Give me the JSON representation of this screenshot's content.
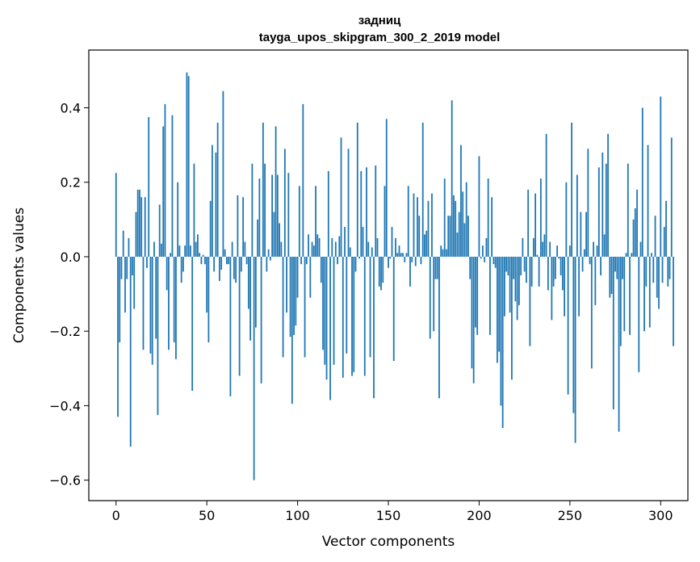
{
  "chart_data": {
    "type": "bar",
    "title_line1": "задниц",
    "title_line2": "tayga_upos_skipgram_300_2_2019 model",
    "xlabel": "Vector components",
    "ylabel": "Components values",
    "xlim": [
      -15,
      315
    ],
    "ylim": [
      -0.655,
      0.555
    ],
    "x_ticks": [
      0,
      50,
      100,
      150,
      200,
      250,
      300
    ],
    "x_tick_labels": [
      "0",
      "50",
      "100",
      "150",
      "200",
      "250",
      "300"
    ],
    "y_ticks": [
      -0.6,
      -0.4,
      -0.2,
      0.0,
      0.2,
      0.4
    ],
    "y_tick_labels": [
      "−0.6",
      "−0.4",
      "−0.2",
      "0.0",
      "0.2",
      "0.4"
    ],
    "bar_color": "#1f77b4",
    "values": [
      0.225,
      -0.43,
      -0.23,
      -0.06,
      0.07,
      -0.15,
      -0.06,
      0.05,
      -0.51,
      -0.05,
      -0.14,
      0.12,
      0.18,
      0.18,
      0.16,
      -0.25,
      0.16,
      -0.03,
      0.375,
      -0.26,
      -0.29,
      0.04,
      -0.22,
      -0.425,
      0.14,
      0.035,
      0.35,
      0.41,
      -0.09,
      -0.25,
      0.01,
      0.38,
      -0.23,
      -0.275,
      0.2,
      0.03,
      -0.07,
      -0.04,
      0.03,
      0.495,
      0.485,
      0.03,
      -0.36,
      0.25,
      0.04,
      0.06,
      0.01,
      -0.02,
      0.005,
      -0.02,
      -0.15,
      -0.23,
      0.15,
      0.3,
      -0.04,
      0.28,
      0.36,
      -0.065,
      -0.035,
      0.445,
      0.02,
      -0.02,
      -0.02,
      -0.375,
      0.04,
      -0.06,
      -0.07,
      0.165,
      -0.32,
      -0.04,
      0.16,
      0.04,
      -0.02,
      -0.14,
      -0.225,
      0.25,
      -0.6,
      -0.19,
      0.1,
      0.21,
      -0.34,
      0.36,
      0.25,
      -0.04,
      0.02,
      -0.01,
      0.22,
      0.12,
      0.35,
      0.22,
      0.09,
      0.04,
      -0.27,
      0.29,
      -0.15,
      0.225,
      -0.215,
      -0.395,
      -0.21,
      -0.185,
      -0.11,
      0.19,
      -0.02,
      0.41,
      -0.27,
      -0.02,
      0.06,
      -0.11,
      0.04,
      0.03,
      0.19,
      0.06,
      0.05,
      -0.07,
      -0.25,
      -0.29,
      -0.33,
      0.23,
      -0.385,
      0.05,
      -0.29,
      0.04,
      -0.02,
      0.055,
      0.32,
      -0.325,
      0.08,
      -0.26,
      0.29,
      0.025,
      -0.32,
      -0.31,
      -0.04,
      0.36,
      -0.005,
      0.23,
      0.08,
      -0.32,
      0.24,
      0.04,
      -0.27,
      0.025,
      -0.38,
      0.245,
      0.05,
      -0.08,
      -0.09,
      -0.07,
      0.19,
      0.37,
      -0.03,
      -0.005,
      0.08,
      -0.28,
      0.05,
      0.01,
      0.03,
      0.01,
      0.01,
      -0.015,
      0.01,
      0.19,
      -0.08,
      -0.015,
      0.17,
      -0.025,
      0.16,
      0.11,
      -0.02,
      0.36,
      0.06,
      0.07,
      0.15,
      -0.22,
      0.17,
      -0.2,
      -0.06,
      -0.06,
      -0.38,
      0.03,
      0.02,
      0.21,
      0.02,
      0.11,
      0.11,
      0.42,
      0.165,
      0.15,
      0.065,
      0.12,
      0.3,
      0.175,
      0.09,
      0.2,
      0.11,
      -0.06,
      -0.3,
      -0.34,
      -0.19,
      -0.21,
      0.27,
      -0.005,
      0.03,
      -0.015,
      0.05,
      0.21,
      -0.21,
      0.16,
      -0.02,
      -0.03,
      -0.285,
      -0.255,
      -0.4,
      -0.46,
      -0.16,
      -0.04,
      -0.05,
      -0.15,
      -0.33,
      -0.06,
      -0.12,
      -0.17,
      -0.13,
      -0.05,
      0.05,
      -0.04,
      -0.07,
      0.18,
      -0.24,
      -0.08,
      0.05,
      0.17,
      0.005,
      -0.08,
      0.21,
      0.04,
      0.06,
      0.33,
      -0.09,
      0.04,
      -0.17,
      -0.08,
      -0.06,
      0.03,
      -0.005,
      -0.05,
      -0.09,
      -0.16,
      0.2,
      -0.37,
      0.03,
      0.36,
      -0.42,
      -0.5,
      0.22,
      -0.16,
      0.12,
      -0.04,
      0.02,
      0.12,
      0.29,
      -0.02,
      -0.3,
      0.04,
      -0.13,
      0.03,
      0.24,
      -0.05,
      0.28,
      0.06,
      0.25,
      0.33,
      -0.11,
      -0.1,
      -0.41,
      -0.04,
      -0.06,
      -0.47,
      -0.24,
      -0.06,
      -0.2,
      0.01,
      0.25,
      -0.21,
      0.01,
      0.1,
      0.13,
      0.18,
      -0.31,
      0.04,
      0.4,
      -0.2,
      -0.08,
      0.3,
      -0.19,
      0.01,
      -0.07,
      0.11,
      -0.11,
      -0.14,
      0.43,
      -0.07,
      0.08,
      0.15,
      -0.08,
      -0.06,
      0.32,
      -0.24
    ]
  }
}
